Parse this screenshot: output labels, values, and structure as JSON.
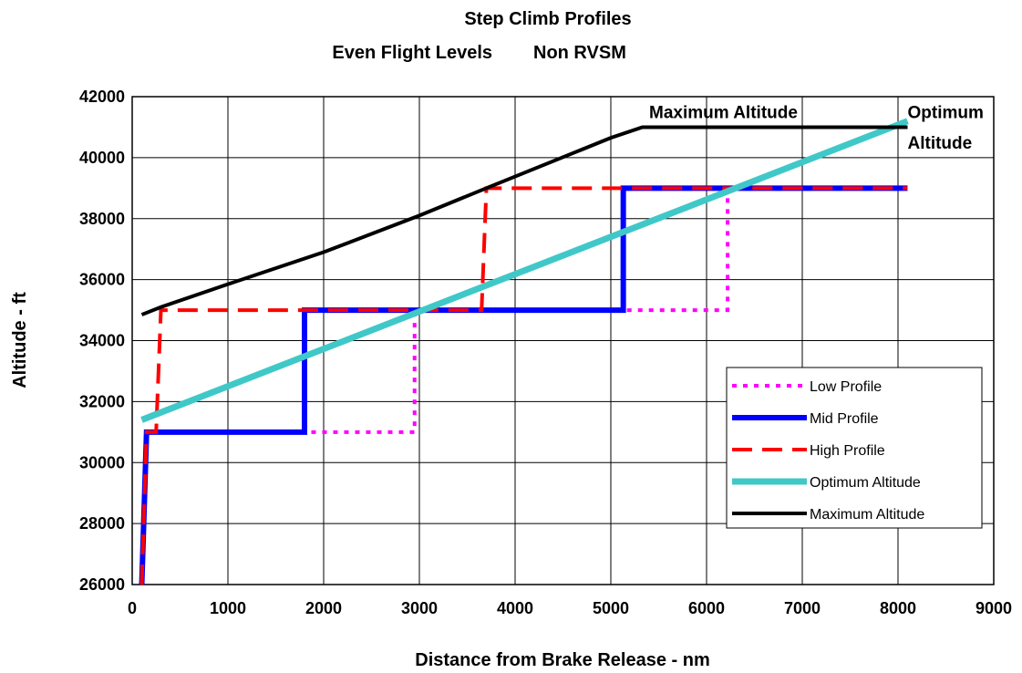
{
  "chart_data": {
    "type": "line",
    "title": "Step Climb Profiles",
    "subtitle_left": "Even Flight Levels",
    "subtitle_right": "Non RVSM",
    "xlabel": "Distance from Brake Release - nm",
    "ylabel": "Altitude - ft",
    "xlim": [
      0,
      9000
    ],
    "ylim": [
      26000,
      42000
    ],
    "x_ticks": [
      0,
      1000,
      2000,
      3000,
      4000,
      5000,
      6000,
      7000,
      8000,
      9000
    ],
    "y_ticks": [
      26000,
      28000,
      30000,
      32000,
      34000,
      36000,
      38000,
      40000,
      42000
    ],
    "x_tick_labels": [
      "0",
      "1000",
      "2000",
      "3000",
      "4000",
      "5000",
      "6000",
      "7000",
      "8000",
      "9000"
    ],
    "y_tick_labels": [
      "26000",
      "28000",
      "30000",
      "32000",
      "34000",
      "36000",
      "38000",
      "40000",
      "42000"
    ],
    "grid": true,
    "legend_position": "bottom-right",
    "series": [
      {
        "name": "Low Profile",
        "color": "#ff00ff",
        "style": "dotted",
        "x": [
          100,
          150,
          1800,
          1800,
          2950,
          2950,
          5100,
          5100,
          6220,
          6220
        ],
        "y": [
          26000,
          31000,
          31000,
          31000,
          31000,
          35000,
          35000,
          35000,
          35000,
          39000
        ]
      },
      {
        "name": "Mid Profile",
        "color": "#0000ff",
        "style": "solid",
        "x": [
          100,
          150,
          1800,
          1800,
          5130,
          5130,
          8100
        ],
        "y": [
          26000,
          31000,
          31000,
          35000,
          35000,
          39000,
          39000
        ]
      },
      {
        "name": "High Profile",
        "color": "#ff0000",
        "style": "dashed",
        "x": [
          100,
          150,
          250,
          300,
          3650,
          3700,
          8100
        ],
        "y": [
          26000,
          31000,
          31000,
          35000,
          35000,
          39000,
          39000
        ]
      },
      {
        "name": "Optimum Altitude",
        "color": "#40c8c8",
        "style": "solid",
        "x": [
          100,
          8100
        ],
        "y": [
          31400,
          41200
        ]
      },
      {
        "name": "Maximum Altitude",
        "color": "#000000",
        "style": "solid",
        "x": [
          100,
          300,
          1000,
          2000,
          3000,
          3700,
          5000,
          5330,
          8100
        ],
        "y": [
          34850,
          35100,
          35850,
          36900,
          38100,
          39000,
          40650,
          41000,
          41000
        ]
      }
    ],
    "annotations": [
      {
        "text": "Maximum Altitude",
        "x": 5400,
        "y": 41500
      },
      {
        "text": "Optimum",
        "x": 8100,
        "y": 41500
      },
      {
        "text": "Altitude",
        "x": 8100,
        "y": 40500
      }
    ]
  }
}
